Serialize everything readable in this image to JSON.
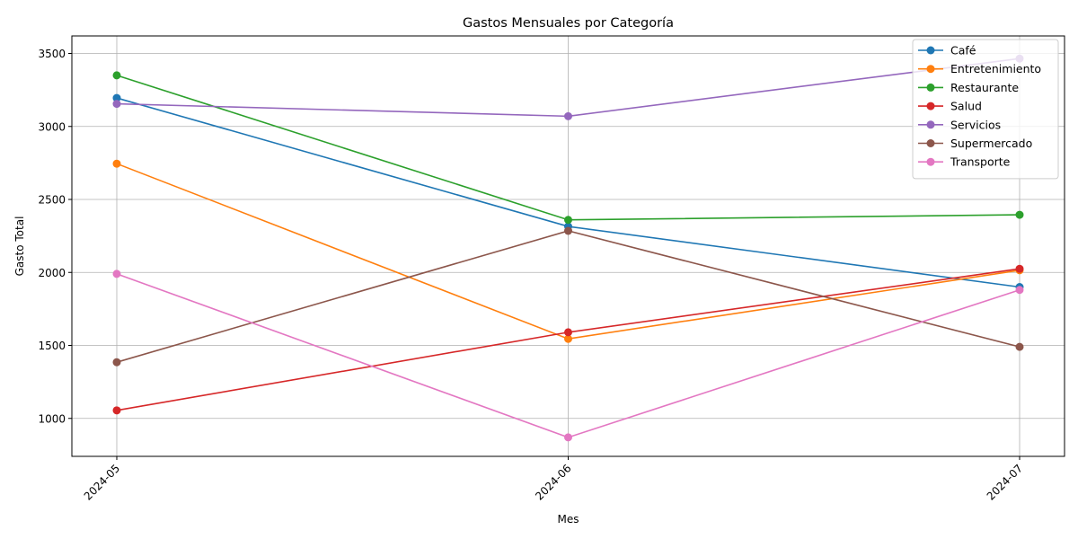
{
  "chart_data": {
    "type": "line",
    "title": "Gastos Mensuales por Categoría",
    "xlabel": "Mes",
    "ylabel": "Gasto Total",
    "x": [
      "2024-05",
      "2024-06",
      "2024-07"
    ],
    "ylim": [
      740,
      3620
    ],
    "yticks": [
      1000,
      1500,
      2000,
      2500,
      3000,
      3500
    ],
    "grid": true,
    "legend_position": "top-right",
    "marker": "circle",
    "series": [
      {
        "name": "Café",
        "color": "#1f77b4",
        "values": [
          3195,
          2315,
          1900
        ]
      },
      {
        "name": "Entretenimiento",
        "color": "#ff7f0e",
        "values": [
          2745,
          1545,
          2015
        ]
      },
      {
        "name": "Restaurante",
        "color": "#2ca02c",
        "values": [
          3350,
          2360,
          2395
        ]
      },
      {
        "name": "Salud",
        "color": "#d62728",
        "values": [
          1055,
          1590,
          2025
        ]
      },
      {
        "name": "Servicios",
        "color": "#9467bd",
        "values": [
          3155,
          3070,
          3465
        ]
      },
      {
        "name": "Supermercado",
        "color": "#8c564b",
        "values": [
          1385,
          2285,
          1490
        ]
      },
      {
        "name": "Transporte",
        "color": "#e377c2",
        "values": [
          1990,
          870,
          1880
        ]
      }
    ]
  }
}
